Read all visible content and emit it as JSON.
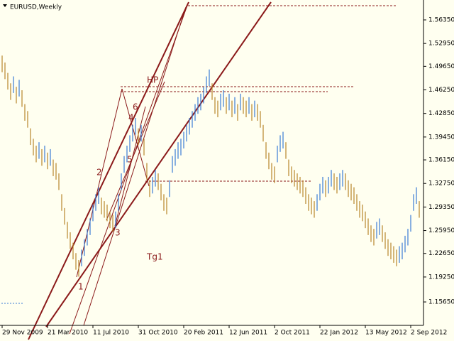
{
  "chart_data": {
    "type": "range",
    "title": "EURUSD,Weekly",
    "ylim": [
      1.1227,
      1.5922
    ],
    "yticks": [
      {
        "value": 1.5635,
        "label": "1.56350"
      },
      {
        "value": 1.5295,
        "label": "1.52950"
      },
      {
        "value": 1.4965,
        "label": "1.49650"
      },
      {
        "value": 1.4625,
        "label": "1.46250"
      },
      {
        "value": 1.4285,
        "label": "1.42850"
      },
      {
        "value": 1.3945,
        "label": "1.39450"
      },
      {
        "value": 1.3615,
        "label": "1.36150"
      },
      {
        "value": 1.3275,
        "label": "1.32750"
      },
      {
        "value": 1.2935,
        "label": "1.29350"
      },
      {
        "value": 1.2595,
        "label": "1.25950"
      },
      {
        "value": 1.2265,
        "label": "1.22650"
      },
      {
        "value": 1.1925,
        "label": "1.19250"
      },
      {
        "value": 1.1565,
        "label": "1.15650"
      }
    ],
    "xlim": [
      -0.75,
      148.75
    ],
    "xticks": [
      {
        "value": 0,
        "label": "29 Nov 2009"
      },
      {
        "value": 16,
        "label": "21 Mar 2010"
      },
      {
        "value": 32,
        "label": "11 Jul 2010"
      },
      {
        "value": 48,
        "label": "31 Oct 2010"
      },
      {
        "value": 64,
        "label": "20 Feb 2011"
      },
      {
        "value": 80,
        "label": "12 Jun 2011"
      },
      {
        "value": 96,
        "label": "2 Oct 2011"
      },
      {
        "value": 112,
        "label": "22 Jan 2012"
      },
      {
        "value": 128,
        "label": "13 May 2012"
      },
      {
        "value": 144,
        "label": "2 Sep 2012"
      }
    ],
    "up_color": "#3a7bd5",
    "down_color": "#b8862a",
    "high": [
      1.512,
      1.502,
      1.487,
      1.472,
      1.482,
      1.467,
      1.477,
      1.462,
      1.442,
      1.432,
      1.407,
      1.392,
      1.382,
      1.387,
      1.377,
      1.382,
      1.372,
      1.377,
      1.362,
      1.357,
      1.342,
      1.312,
      1.292,
      1.272,
      1.257,
      1.242,
      1.227,
      1.217,
      1.232,
      1.247,
      1.262,
      1.277,
      1.297,
      1.312,
      1.322,
      1.307,
      1.302,
      1.297,
      1.287,
      1.282,
      1.287,
      1.312,
      1.342,
      1.367,
      1.382,
      1.397,
      1.412,
      1.422,
      1.407,
      1.412,
      1.392,
      1.357,
      1.332,
      1.337,
      1.347,
      1.342,
      1.327,
      1.312,
      1.307,
      1.332,
      1.367,
      1.377,
      1.387,
      1.392,
      1.402,
      1.412,
      1.422,
      1.432,
      1.442,
      1.452,
      1.457,
      1.467,
      1.482,
      1.492,
      1.472,
      1.452,
      1.447,
      1.457,
      1.462,
      1.452,
      1.457,
      1.447,
      1.452,
      1.442,
      1.457,
      1.452,
      1.447,
      1.452,
      1.442,
      1.447,
      1.442,
      1.432,
      1.412,
      1.387,
      1.372,
      1.357,
      1.352,
      1.382,
      1.397,
      1.402,
      1.387,
      1.362,
      1.352,
      1.347,
      1.342,
      1.337,
      1.332,
      1.322,
      1.312,
      1.307,
      1.302,
      1.312,
      1.327,
      1.337,
      1.332,
      1.337,
      1.347,
      1.342,
      1.337,
      1.342,
      1.347,
      1.342,
      1.332,
      1.327,
      1.322,
      1.312,
      1.302,
      1.297,
      1.287,
      1.277,
      1.267,
      1.262,
      1.272,
      1.277,
      1.267,
      1.257,
      1.247,
      1.242,
      1.237,
      1.232,
      1.237,
      1.242,
      1.252,
      1.262,
      1.282,
      1.312,
      1.322,
      1.302
    ],
    "low": [
      1.488,
      1.478,
      1.463,
      1.448,
      1.458,
      1.443,
      1.453,
      1.438,
      1.418,
      1.408,
      1.383,
      1.368,
      1.358,
      1.363,
      1.353,
      1.358,
      1.348,
      1.353,
      1.338,
      1.333,
      1.318,
      1.288,
      1.268,
      1.248,
      1.233,
      1.218,
      1.203,
      1.193,
      1.208,
      1.223,
      1.238,
      1.253,
      1.273,
      1.288,
      1.298,
      1.283,
      1.278,
      1.273,
      1.263,
      1.258,
      1.263,
      1.288,
      1.318,
      1.343,
      1.358,
      1.373,
      1.388,
      1.398,
      1.383,
      1.388,
      1.368,
      1.333,
      1.308,
      1.313,
      1.323,
      1.318,
      1.303,
      1.288,
      1.283,
      1.308,
      1.343,
      1.353,
      1.363,
      1.368,
      1.378,
      1.388,
      1.398,
      1.408,
      1.418,
      1.428,
      1.433,
      1.443,
      1.458,
      1.468,
      1.448,
      1.428,
      1.423,
      1.433,
      1.438,
      1.428,
      1.433,
      1.423,
      1.428,
      1.418,
      1.433,
      1.428,
      1.423,
      1.428,
      1.418,
      1.423,
      1.418,
      1.408,
      1.388,
      1.363,
      1.348,
      1.333,
      1.328,
      1.358,
      1.373,
      1.378,
      1.363,
      1.338,
      1.328,
      1.323,
      1.318,
      1.313,
      1.308,
      1.298,
      1.288,
      1.283,
      1.278,
      1.288,
      1.303,
      1.313,
      1.308,
      1.313,
      1.323,
      1.318,
      1.313,
      1.318,
      1.323,
      1.318,
      1.308,
      1.303,
      1.298,
      1.288,
      1.278,
      1.273,
      1.263,
      1.253,
      1.243,
      1.238,
      1.248,
      1.253,
      1.243,
      1.233,
      1.223,
      1.218,
      1.213,
      1.208,
      1.213,
      1.218,
      1.228,
      1.238,
      1.258,
      1.288,
      1.298,
      1.278
    ],
    "annotations": [
      "1",
      "2",
      "3",
      "4",
      "5",
      "6",
      "HP",
      "Tg1"
    ]
  }
}
